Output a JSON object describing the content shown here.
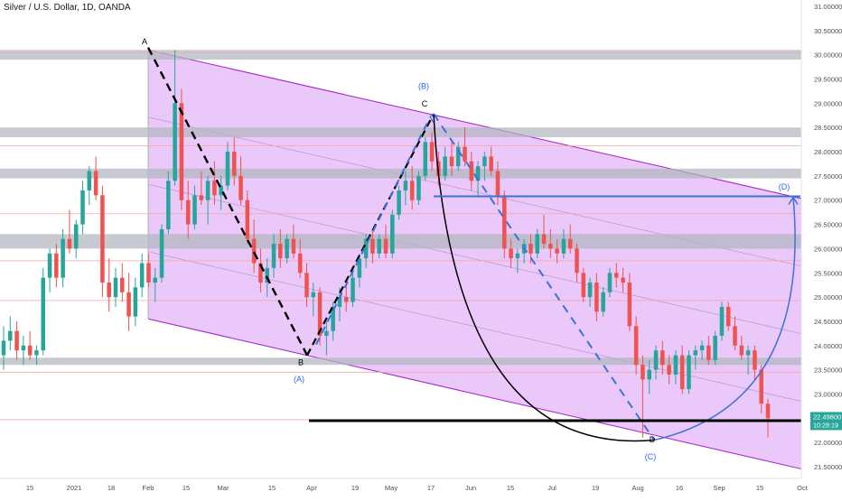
{
  "header": {
    "title": "Silver / U.S. Dollar, 1D, OANDA"
  },
  "colors": {
    "up": "#26a69a",
    "down": "#ef5350",
    "channel_fill": "#e3b5f7",
    "channel_line": "#a020c8",
    "zone": "#b2b5be",
    "zig_solid": "#000000",
    "zig_blue": "#3a72d8",
    "arc_blue": "#3a72d8",
    "label_blue": "#2962ff",
    "price_tag_bg": "#26a69a",
    "axis_text": "#4a4e58",
    "support_line": "#000000",
    "thin_red": "#f4a6a6"
  },
  "chart_data": {
    "type": "candlestick",
    "title": "Silver / U.S. Dollar, 1D, OANDA",
    "y_axis": {
      "ticks": [
        "31.00000",
        "30.50000",
        "30.00000",
        "29.50000",
        "29.00000",
        "28.50000",
        "28.00000",
        "27.50000",
        "27.00000",
        "26.50000",
        "26.00000",
        "25.50000",
        "25.00000",
        "24.50000",
        "24.00000",
        "23.50000",
        "23.00000",
        "22.50000",
        "22.00000",
        "21.50000"
      ],
      "range": [
        21.3,
        31.0
      ]
    },
    "x_axis": {
      "ticks": [
        "15",
        "2021",
        "18",
        "Feb",
        "15",
        "Mar",
        "15",
        "Apr",
        "19",
        "May",
        "17",
        "Jun",
        "15",
        "Jul",
        "19",
        "Aug",
        "16",
        "Sep",
        "15",
        "Oct"
      ]
    },
    "current_price": {
      "value": "22.49800",
      "countdown": "10:28:19"
    },
    "zones": [
      {
        "low": 29.9,
        "high": 30.1
      },
      {
        "low": 28.3,
        "high": 28.5
      },
      {
        "low": 27.45,
        "high": 27.65
      },
      {
        "low": 26.0,
        "high": 26.3
      },
      {
        "low": 23.6,
        "high": 23.75
      }
    ],
    "horizontal_lines": [
      27.08,
      22.45
    ],
    "thin_levels": [
      30.05,
      28.12,
      26.72,
      25.75,
      24.93,
      23.45,
      22.47
    ],
    "channel": {
      "upper": {
        "from": [
          "Feb",
          30.1
        ],
        "to": [
          "Oct",
          27.03
        ]
      },
      "lower": {
        "from": [
          "Feb",
          24.55
        ],
        "to": [
          "Oct",
          21.45
        ]
      }
    },
    "wave_labels": [
      {
        "text": "A",
        "value": 30.22
      },
      {
        "text": "B",
        "value": 23.6
      },
      {
        "text": "(A)",
        "value": 23.25
      },
      {
        "text": "(B)",
        "value": 29.3
      },
      {
        "text": "C",
        "value": 28.93
      },
      {
        "text": "D",
        "value": 22.0
      },
      {
        "text": "(C)",
        "value": 21.65
      },
      {
        "text": "(D)",
        "value": 27.22
      }
    ],
    "candles": [
      {
        "o": 23.8,
        "h": 24.4,
        "l": 23.5,
        "c": 24.1
      },
      {
        "o": 24.1,
        "h": 24.6,
        "l": 23.9,
        "c": 24.3
      },
      {
        "o": 24.3,
        "h": 24.5,
        "l": 23.7,
        "c": 23.9
      },
      {
        "o": 23.9,
        "h": 24.2,
        "l": 23.6,
        "c": 24.0
      },
      {
        "o": 24.0,
        "h": 24.3,
        "l": 23.7,
        "c": 23.8
      },
      {
        "o": 23.8,
        "h": 24.0,
        "l": 23.6,
        "c": 23.9
      },
      {
        "o": 23.9,
        "h": 25.6,
        "l": 23.8,
        "c": 25.4
      },
      {
        "o": 25.4,
        "h": 26.0,
        "l": 25.1,
        "c": 25.9
      },
      {
        "o": 25.9,
        "h": 26.1,
        "l": 25.2,
        "c": 25.4
      },
      {
        "o": 25.4,
        "h": 26.4,
        "l": 25.2,
        "c": 26.2
      },
      {
        "o": 26.2,
        "h": 26.8,
        "l": 25.9,
        "c": 26.0
      },
      {
        "o": 26.0,
        "h": 26.6,
        "l": 25.8,
        "c": 26.5
      },
      {
        "o": 26.5,
        "h": 27.4,
        "l": 26.3,
        "c": 27.2
      },
      {
        "o": 27.2,
        "h": 27.7,
        "l": 26.9,
        "c": 27.6
      },
      {
        "o": 27.6,
        "h": 27.9,
        "l": 27.0,
        "c": 27.1
      },
      {
        "o": 27.1,
        "h": 27.3,
        "l": 25.0,
        "c": 25.3
      },
      {
        "o": 25.3,
        "h": 25.8,
        "l": 24.7,
        "c": 25.0
      },
      {
        "o": 25.0,
        "h": 25.6,
        "l": 24.8,
        "c": 25.4
      },
      {
        "o": 25.4,
        "h": 25.7,
        "l": 24.9,
        "c": 25.1
      },
      {
        "o": 25.1,
        "h": 25.5,
        "l": 24.3,
        "c": 24.6
      },
      {
        "o": 24.6,
        "h": 25.4,
        "l": 24.4,
        "c": 25.2
      },
      {
        "o": 25.2,
        "h": 25.9,
        "l": 25.0,
        "c": 25.7
      },
      {
        "o": 25.7,
        "h": 25.9,
        "l": 25.2,
        "c": 25.3
      },
      {
        "o": 25.3,
        "h": 25.6,
        "l": 24.9,
        "c": 25.4
      },
      {
        "o": 25.4,
        "h": 26.5,
        "l": 25.3,
        "c": 26.4
      },
      {
        "o": 26.4,
        "h": 27.6,
        "l": 26.3,
        "c": 27.4
      },
      {
        "o": 27.4,
        "h": 30.1,
        "l": 27.3,
        "c": 29.0
      },
      {
        "o": 29.0,
        "h": 29.3,
        "l": 26.8,
        "c": 27.0
      },
      {
        "o": 27.0,
        "h": 27.4,
        "l": 26.2,
        "c": 26.5
      },
      {
        "o": 26.5,
        "h": 27.3,
        "l": 26.4,
        "c": 27.1
      },
      {
        "o": 27.1,
        "h": 27.6,
        "l": 26.9,
        "c": 27.0
      },
      {
        "o": 27.0,
        "h": 27.5,
        "l": 26.5,
        "c": 27.4
      },
      {
        "o": 27.4,
        "h": 27.8,
        "l": 26.9,
        "c": 27.1
      },
      {
        "o": 27.1,
        "h": 27.5,
        "l": 26.8,
        "c": 27.3
      },
      {
        "o": 27.3,
        "h": 28.2,
        "l": 27.2,
        "c": 28.0
      },
      {
        "o": 28.0,
        "h": 28.3,
        "l": 27.3,
        "c": 27.5
      },
      {
        "o": 27.5,
        "h": 27.9,
        "l": 26.9,
        "c": 27.0
      },
      {
        "o": 27.0,
        "h": 27.2,
        "l": 26.1,
        "c": 26.2
      },
      {
        "o": 26.2,
        "h": 26.6,
        "l": 25.5,
        "c": 25.7
      },
      {
        "o": 25.7,
        "h": 26.0,
        "l": 25.1,
        "c": 25.3
      },
      {
        "o": 25.3,
        "h": 25.8,
        "l": 25.0,
        "c": 25.6
      },
      {
        "o": 25.6,
        "h": 26.3,
        "l": 25.4,
        "c": 26.1
      },
      {
        "o": 26.1,
        "h": 26.4,
        "l": 25.6,
        "c": 25.8
      },
      {
        "o": 25.8,
        "h": 26.3,
        "l": 25.7,
        "c": 26.2
      },
      {
        "o": 26.2,
        "h": 26.5,
        "l": 25.8,
        "c": 25.9
      },
      {
        "o": 25.9,
        "h": 26.2,
        "l": 25.4,
        "c": 25.5
      },
      {
        "o": 25.5,
        "h": 25.7,
        "l": 24.8,
        "c": 25.0
      },
      {
        "o": 25.0,
        "h": 25.3,
        "l": 24.6,
        "c": 25.1
      },
      {
        "o": 25.1,
        "h": 25.2,
        "l": 24.0,
        "c": 24.2
      },
      {
        "o": 24.2,
        "h": 24.5,
        "l": 23.8,
        "c": 24.3
      },
      {
        "o": 24.3,
        "h": 24.9,
        "l": 24.1,
        "c": 24.8
      },
      {
        "o": 24.8,
        "h": 25.2,
        "l": 24.5,
        "c": 25.0
      },
      {
        "o": 25.0,
        "h": 25.3,
        "l": 24.7,
        "c": 24.9
      },
      {
        "o": 24.9,
        "h": 25.5,
        "l": 24.8,
        "c": 25.4
      },
      {
        "o": 25.4,
        "h": 25.9,
        "l": 25.2,
        "c": 25.8
      },
      {
        "o": 25.8,
        "h": 26.3,
        "l": 25.6,
        "c": 26.2
      },
      {
        "o": 26.2,
        "h": 26.4,
        "l": 25.7,
        "c": 25.9
      },
      {
        "o": 25.9,
        "h": 26.3,
        "l": 25.8,
        "c": 26.2
      },
      {
        "o": 26.2,
        "h": 26.5,
        "l": 25.8,
        "c": 25.9
      },
      {
        "o": 25.9,
        "h": 26.8,
        "l": 25.8,
        "c": 26.7
      },
      {
        "o": 26.7,
        "h": 27.3,
        "l": 26.6,
        "c": 27.2
      },
      {
        "o": 27.2,
        "h": 27.6,
        "l": 26.9,
        "c": 27.4
      },
      {
        "o": 27.4,
        "h": 27.7,
        "l": 26.8,
        "c": 27.0
      },
      {
        "o": 27.0,
        "h": 27.6,
        "l": 26.9,
        "c": 27.5
      },
      {
        "o": 27.5,
        "h": 28.3,
        "l": 27.4,
        "c": 28.2
      },
      {
        "o": 28.2,
        "h": 28.4,
        "l": 27.6,
        "c": 27.8
      },
      {
        "o": 27.8,
        "h": 28.0,
        "l": 27.3,
        "c": 27.5
      },
      {
        "o": 27.5,
        "h": 28.1,
        "l": 27.4,
        "c": 27.9
      },
      {
        "o": 27.9,
        "h": 28.2,
        "l": 27.5,
        "c": 27.7
      },
      {
        "o": 27.7,
        "h": 28.2,
        "l": 27.6,
        "c": 28.1
      },
      {
        "o": 28.1,
        "h": 28.5,
        "l": 27.7,
        "c": 27.8
      },
      {
        "o": 27.8,
        "h": 28.0,
        "l": 27.2,
        "c": 27.4
      },
      {
        "o": 27.4,
        "h": 27.8,
        "l": 27.1,
        "c": 27.7
      },
      {
        "o": 27.7,
        "h": 28.0,
        "l": 27.4,
        "c": 27.9
      },
      {
        "o": 27.9,
        "h": 28.1,
        "l": 27.5,
        "c": 27.6
      },
      {
        "o": 27.6,
        "h": 27.8,
        "l": 26.9,
        "c": 27.1
      },
      {
        "o": 27.1,
        "h": 27.2,
        "l": 25.8,
        "c": 26.0
      },
      {
        "o": 26.0,
        "h": 26.2,
        "l": 25.6,
        "c": 25.8
      },
      {
        "o": 25.8,
        "h": 26.0,
        "l": 25.5,
        "c": 25.9
      },
      {
        "o": 25.9,
        "h": 26.2,
        "l": 25.7,
        "c": 26.1
      },
      {
        "o": 26.1,
        "h": 26.3,
        "l": 25.7,
        "c": 25.9
      },
      {
        "o": 25.9,
        "h": 26.4,
        "l": 25.8,
        "c": 26.3
      },
      {
        "o": 26.3,
        "h": 26.7,
        "l": 26.0,
        "c": 26.1
      },
      {
        "o": 26.1,
        "h": 26.4,
        "l": 25.8,
        "c": 26.0
      },
      {
        "o": 26.0,
        "h": 26.2,
        "l": 25.7,
        "c": 25.9
      },
      {
        "o": 25.9,
        "h": 26.4,
        "l": 25.8,
        "c": 26.2
      },
      {
        "o": 26.2,
        "h": 26.5,
        "l": 25.9,
        "c": 26.0
      },
      {
        "o": 26.0,
        "h": 26.1,
        "l": 25.3,
        "c": 25.5
      },
      {
        "o": 25.5,
        "h": 25.6,
        "l": 24.9,
        "c": 25.0
      },
      {
        "o": 25.0,
        "h": 25.4,
        "l": 24.8,
        "c": 25.3
      },
      {
        "o": 25.3,
        "h": 25.5,
        "l": 24.5,
        "c": 24.7
      },
      {
        "o": 24.7,
        "h": 25.2,
        "l": 24.6,
        "c": 25.1
      },
      {
        "o": 25.1,
        "h": 25.6,
        "l": 25.0,
        "c": 25.5
      },
      {
        "o": 25.5,
        "h": 25.7,
        "l": 25.2,
        "c": 25.4
      },
      {
        "o": 25.4,
        "h": 25.6,
        "l": 25.1,
        "c": 25.3
      },
      {
        "o": 25.3,
        "h": 25.5,
        "l": 24.3,
        "c": 24.4
      },
      {
        "o": 24.4,
        "h": 24.6,
        "l": 23.4,
        "c": 23.6
      },
      {
        "o": 23.6,
        "h": 23.8,
        "l": 22.1,
        "c": 23.3
      },
      {
        "o": 23.3,
        "h": 23.7,
        "l": 23.0,
        "c": 23.5
      },
      {
        "o": 23.5,
        "h": 24.0,
        "l": 23.3,
        "c": 23.9
      },
      {
        "o": 23.9,
        "h": 24.1,
        "l": 23.4,
        "c": 23.6
      },
      {
        "o": 23.6,
        "h": 23.8,
        "l": 23.2,
        "c": 23.4
      },
      {
        "o": 23.4,
        "h": 23.9,
        "l": 23.2,
        "c": 23.8
      },
      {
        "o": 23.8,
        "h": 24.0,
        "l": 23.0,
        "c": 23.1
      },
      {
        "o": 23.1,
        "h": 23.9,
        "l": 23.0,
        "c": 23.8
      },
      {
        "o": 23.8,
        "h": 24.0,
        "l": 23.5,
        "c": 23.9
      },
      {
        "o": 23.9,
        "h": 24.1,
        "l": 23.7,
        "c": 24.0
      },
      {
        "o": 24.0,
        "h": 24.2,
        "l": 23.6,
        "c": 23.7
      },
      {
        "o": 23.7,
        "h": 24.3,
        "l": 23.6,
        "c": 24.2
      },
      {
        "o": 24.2,
        "h": 24.9,
        "l": 24.1,
        "c": 24.8
      },
      {
        "o": 24.8,
        "h": 24.9,
        "l": 24.3,
        "c": 24.4
      },
      {
        "o": 24.4,
        "h": 24.6,
        "l": 23.9,
        "c": 24.0
      },
      {
        "o": 24.0,
        "h": 24.2,
        "l": 23.7,
        "c": 23.8
      },
      {
        "o": 23.8,
        "h": 24.0,
        "l": 23.4,
        "c": 23.9
      },
      {
        "o": 23.9,
        "h": 24.0,
        "l": 23.3,
        "c": 23.5
      },
      {
        "o": 23.5,
        "h": 23.6,
        "l": 22.6,
        "c": 22.8
      },
      {
        "o": 22.8,
        "h": 22.9,
        "l": 22.1,
        "c": 22.498
      }
    ]
  }
}
